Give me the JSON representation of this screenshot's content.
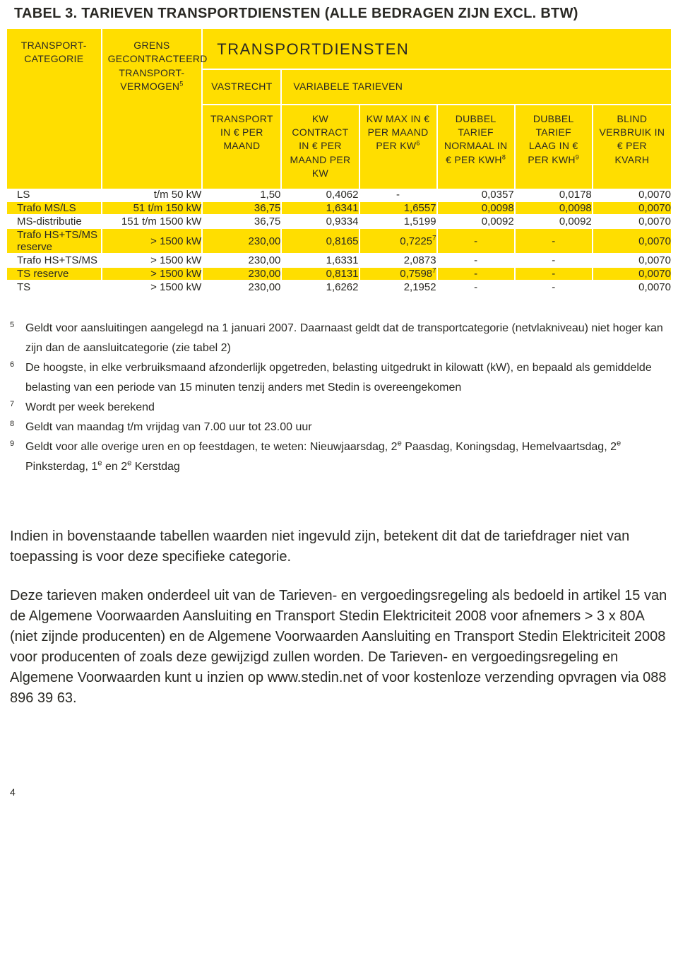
{
  "title": "TABEL 3. TARIEVEN TRANSPORTDIENSTEN (ALLE BEDRAGEN ZIJN EXCL. BTW)",
  "colors": {
    "accent": "#ffde00",
    "text": "#2a2924",
    "bg": "#ffffff"
  },
  "header": {
    "top_span": "TRANSPORTDIENSTEN",
    "transport_cat": "TRANSPORT-\nCATEGORIE",
    "grens": "GRENS GECONTRACTEERD TRANSPORT-VERMOGEN",
    "grens_sup": "5",
    "vastrecht": "VASTRECHT",
    "variabele": "VARIABELE TARIEVEN",
    "transport_eur": "TRANSPORT IN € PER MAAND",
    "kw_contract": "KW CONTRACT IN € PER MAAND PER KW",
    "kw_max": "KW MAX IN € PER MAAND PER KW",
    "kw_max_sup": "6",
    "dubbel_normaal": "DUBBEL TARIEF NORMAAL IN € PER KWH",
    "dubbel_normaal_sup": "8",
    "dubbel_laag": "DUBBEL TARIEF LAAG IN € PER KWH",
    "dubbel_laag_sup": "9",
    "blind": "BLIND VERBRUIK IN € PER KVARH"
  },
  "rows": [
    {
      "shade": "white",
      "c0": "LS",
      "c1": "t/m 50 kW",
      "c2": "1,50",
      "c3": "0,4062",
      "c4": "-",
      "c4sup": "",
      "c5": "0,0357",
      "c6": "0,0178",
      "c7": "0,0070"
    },
    {
      "shade": "yellow",
      "c0": "Trafo MS/LS",
      "c1": "51 t/m 150 kW",
      "c2": "36,75",
      "c3": "1,6341",
      "c4": "1,6557",
      "c4sup": "",
      "c5": "0,0098",
      "c6": "0,0098",
      "c7": "0,0070"
    },
    {
      "shade": "white",
      "c0": "MS-distributie",
      "c1": "151 t/m 1500 kW",
      "c2": "36,75",
      "c3": "0,9334",
      "c4": "1,5199",
      "c4sup": "",
      "c5": "0,0092",
      "c6": "0,0092",
      "c7": "0,0070"
    },
    {
      "shade": "yellow",
      "c0": "Trafo HS+TS/MS reserve",
      "c1": "> 1500 kW",
      "c2": "230,00",
      "c3": "0,8165",
      "c4": "0,7225",
      "c4sup": "7",
      "c5": "-",
      "c6": "-",
      "c7": "0,0070"
    },
    {
      "shade": "white",
      "c0": "Trafo HS+TS/MS",
      "c1": "> 1500 kW",
      "c2": "230,00",
      "c3": "1,6331",
      "c4": "2,0873",
      "c4sup": "",
      "c5": "-",
      "c6": "-",
      "c7": "0,0070"
    },
    {
      "shade": "yellow",
      "c0": "TS reserve",
      "c1": "> 1500 kW",
      "c2": "230,00",
      "c3": "0,8131",
      "c4": "0,7598",
      "c4sup": "7",
      "c5": "-",
      "c6": "-",
      "c7": "0,0070"
    },
    {
      "shade": "white",
      "c0": "TS",
      "c1": "> 1500 kW",
      "c2": "230,00",
      "c3": "1,6262",
      "c4": "2,1952",
      "c4sup": "",
      "c5": "-",
      "c6": "-",
      "c7": "0,0070"
    }
  ],
  "footnotes": [
    {
      "n": "5",
      "t": "Geldt voor aansluitingen aangelegd na 1 januari 2007. Daarnaast geldt dat de transportcategorie (netvlakniveau) niet hoger kan zijn dan de aansluitcategorie (zie tabel 2)"
    },
    {
      "n": "6",
      "t": "De hoogste, in elke verbruiksmaand afzonderlijk opgetreden, belasting uitgedrukt in kilowatt (kW), en bepaald als gemiddelde belasting van een periode van 15 minuten tenzij anders met Stedin is overeengekomen"
    },
    {
      "n": "7",
      "t": "Wordt per week berekend"
    },
    {
      "n": "8",
      "t": "Geldt van maandag t/m vrijdag van 7.00 uur tot 23.00 uur"
    },
    {
      "n": "9",
      "t": "Geldt voor alle overige uren en op feestdagen, te weten: Nieuwjaarsdag, 2<sup>e</sup> Paasdag, Koningsdag, Hemelvaartsdag, 2<sup>e</sup> Pinksterdag, 1<sup>e</sup> en 2<sup>e</sup> Kerstdag"
    }
  ],
  "body": {
    "p1": "Indien in bovenstaande tabellen waarden niet ingevuld zijn, betekent dit dat de tarief­drager niet van toepassing is voor deze specifieke categorie.",
    "p2": "Deze tarieven maken onderdeel uit van de Tarieven- en vergoedingsregeling als bedoeld in artikel 15 van de Algemene Voorwaarden Aansluiting en Transport Stedin Elektriciteit 2008 voor afnemers > 3 x 80A (niet zijnde producenten) en de Algemene Voorwaarden Aansluiting en Transport Stedin Elektriciteit 2008 voor producenten of zoals deze gewijzigd zullen worden. De Tarieven- en vergoedingsregeling en Algemene Voorwaarden kunt u inzien op www.stedin.net of voor kostenloze verzending opvragen via 088 896 39 63."
  },
  "page_number": "4"
}
